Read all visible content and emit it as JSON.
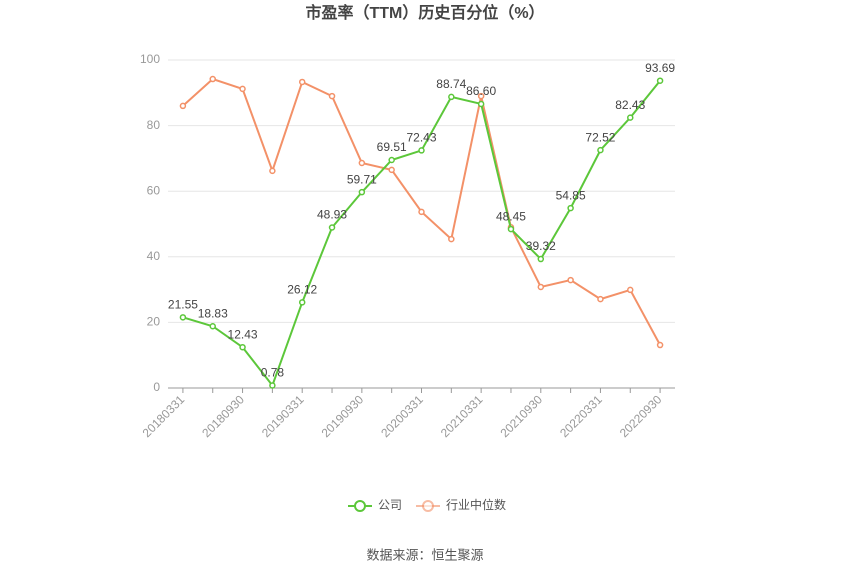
{
  "chart_data": {
    "type": "line",
    "title": "市盈率（TTM）历史百分位（%）",
    "categories": [
      "20180331",
      null,
      "20180930",
      null,
      "20190331",
      null,
      "20190930",
      null,
      "20200331",
      null,
      "20210331",
      null,
      "20210930",
      null,
      "20220331",
      null,
      "20220930"
    ],
    "series": [
      {
        "name": "公司",
        "color": "#5cc73a",
        "values": [
          21.55,
          18.83,
          12.43,
          0.78,
          26.12,
          48.93,
          59.71,
          69.51,
          72.43,
          88.74,
          86.6,
          48.45,
          39.32,
          54.85,
          72.52,
          82.43,
          93.69
        ],
        "value_labels": [
          "21.55",
          "18.83",
          "12.43",
          "0.78",
          "26.12",
          "48.93",
          "59.71",
          "69.51",
          "72.43",
          "88.74",
          "86.60",
          "48.45",
          "39.32",
          "54.85",
          "72.52",
          "82.43",
          "93.69"
        ]
      },
      {
        "name": "行业中位数",
        "color": "#f39168",
        "values": [
          86,
          94.2,
          91.2,
          66.2,
          93.3,
          89,
          68.6,
          66.5,
          53.7,
          45.4,
          89,
          49,
          30.8,
          32.9,
          27.1,
          29.9,
          13.1
        ]
      }
    ],
    "ylim": [
      0,
      100
    ],
    "yticks": [
      0,
      20,
      40,
      60,
      80,
      100
    ],
    "grid": true,
    "source": "数据来源：恒生聚源"
  }
}
